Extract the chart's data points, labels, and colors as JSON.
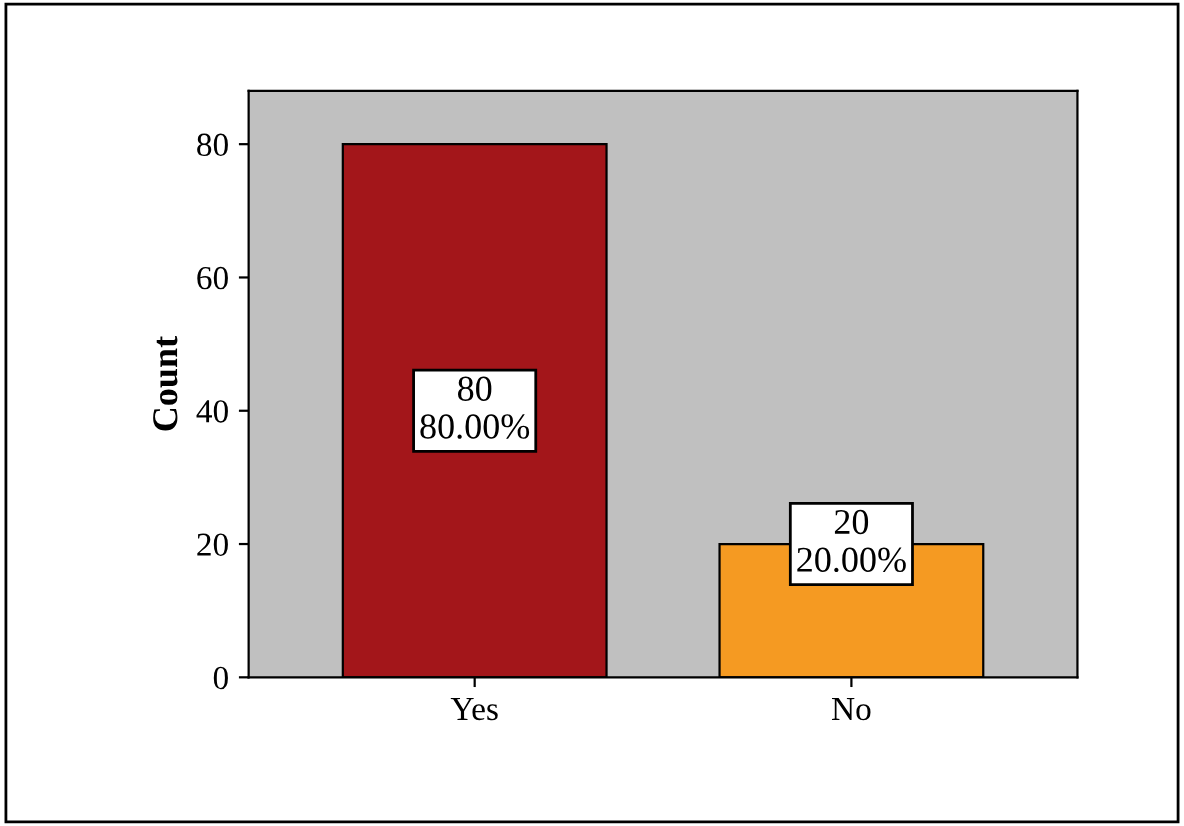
{
  "chart_data": {
    "type": "bar",
    "ylabel": "Count",
    "categories": [
      "Yes",
      "No"
    ],
    "values": [
      80,
      20
    ],
    "colors": [
      "#a3161a",
      "#f59a22"
    ],
    "value_labels": [
      "80\n80.00%",
      "20\n20.00%"
    ],
    "ylim": [
      0,
      88
    ],
    "yticks": [
      0,
      20,
      40,
      60,
      80
    ],
    "grid": false
  }
}
